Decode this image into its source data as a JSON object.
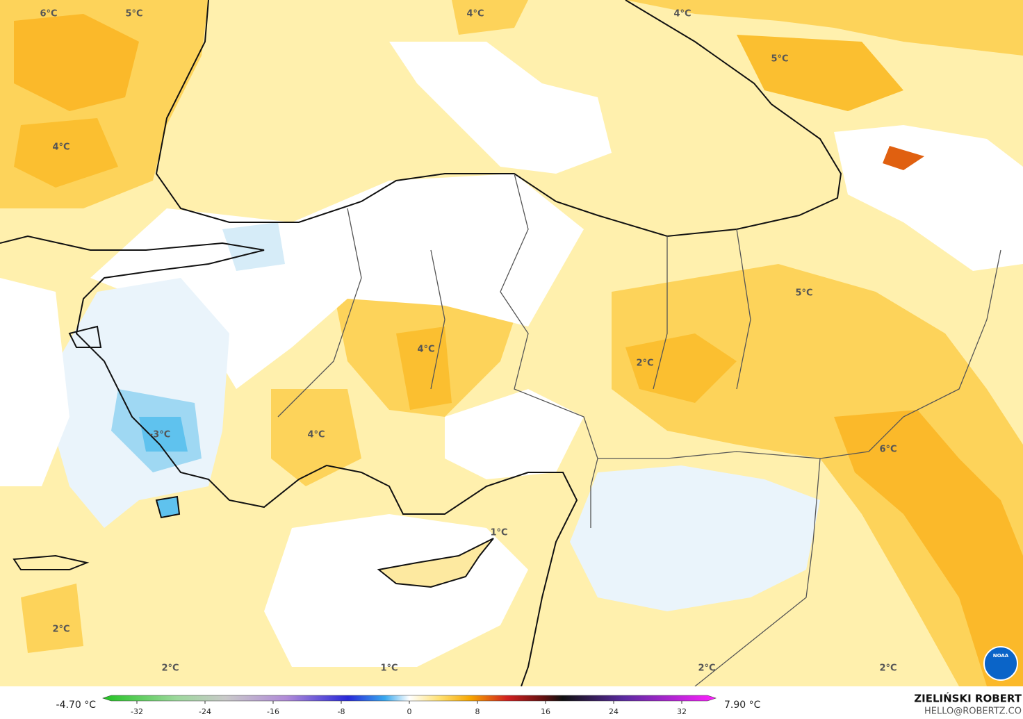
{
  "map": {
    "labels": [
      "6°C",
      "5°C",
      "4°C",
      "4°C",
      "5°C",
      "4°C",
      "5°C",
      "4°C",
      "2°C",
      "4°C",
      "-3°C",
      "1°C",
      "6°C",
      "2°C",
      "2°C",
      "1°C",
      "2°C",
      "2°C"
    ]
  },
  "colorbar": {
    "min_label": "-4.70 °C",
    "max_label": "7.90 °C",
    "lim": [
      -36,
      36
    ],
    "ticks": [
      -32,
      -24,
      -16,
      -8,
      0,
      8,
      16,
      24,
      32
    ]
  },
  "credit": {
    "name": "ZIELIŃSKI ROBERT",
    "contact": "HELLO@ROBERTZ.CO",
    "logo": "NOAA"
  }
}
